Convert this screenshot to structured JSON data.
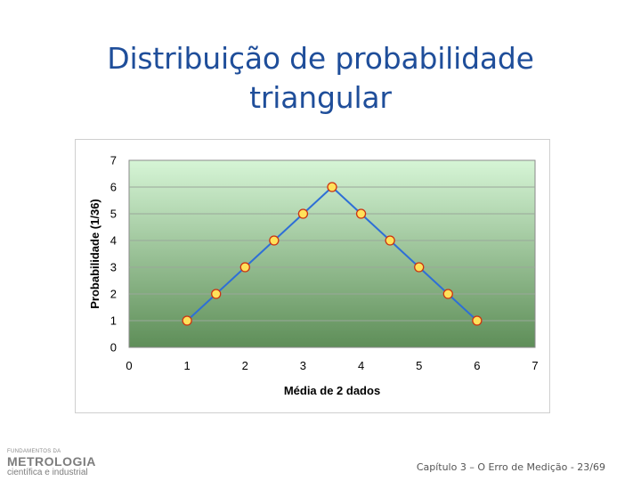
{
  "slide": {
    "title_line1": "Distribuição de probabilidade",
    "title_line2": "triangular",
    "footer": "Capítulo 3 – O Erro de Medição - 23/69"
  },
  "logo": {
    "small": "FUNDAMENTOS DA",
    "main": "METROLOGIA",
    "sub": "científica e industrial"
  },
  "colors": {
    "line": "#2e6fd6",
    "marker_fill": "#ffe15a",
    "marker_stroke": "#cc3311",
    "plot_top": "#d6f5d6",
    "plot_bottom": "#5e8e58",
    "title": "#1f4e9a"
  },
  "chart_data": {
    "type": "line",
    "title": "",
    "xlabel": "Média de 2 dados",
    "ylabel": "Probabilidade (1/36)",
    "xlim": [
      0,
      7
    ],
    "ylim": [
      0,
      7
    ],
    "xticks": [
      0,
      1,
      2,
      3,
      4,
      5,
      6,
      7
    ],
    "yticks": [
      0,
      1,
      2,
      3,
      4,
      5,
      6,
      7
    ],
    "grid": true,
    "legend": "none",
    "x": [
      1,
      1.5,
      2,
      2.5,
      3,
      3.5,
      4,
      4.5,
      5,
      5.5,
      6
    ],
    "y": [
      1,
      2,
      3,
      4,
      5,
      6,
      5,
      4,
      3,
      2,
      1
    ]
  }
}
